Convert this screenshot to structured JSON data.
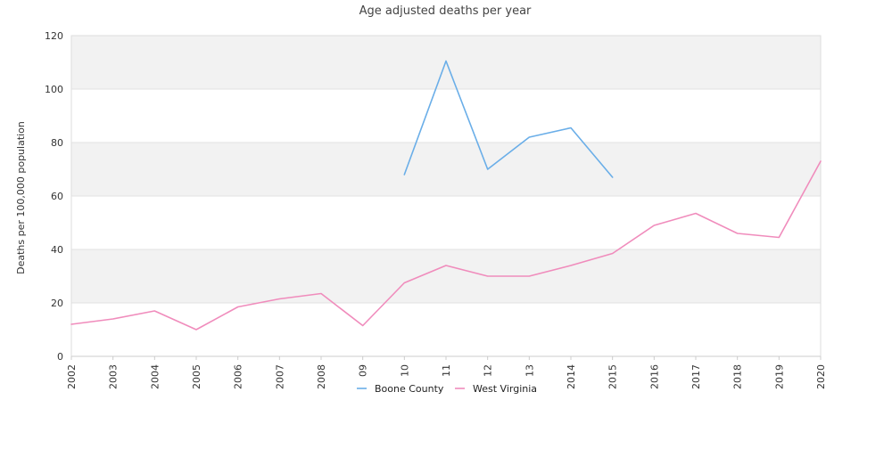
{
  "chart_data": {
    "type": "line",
    "title": "Age adjusted deaths per year",
    "xlabel": "",
    "ylabel": "Deaths per 100,000 population",
    "categories": [
      "2002",
      "2003",
      "2004",
      "2005",
      "2006",
      "2007",
      "2008",
      "09",
      "10",
      "11",
      "12",
      "13",
      "2014",
      "2015",
      "2016",
      "2017",
      "2018",
      "2019",
      "2020"
    ],
    "ylim": [
      0,
      120
    ],
    "yticks": [
      0,
      20,
      40,
      60,
      80,
      100,
      120
    ],
    "grid": "alternating horizontal bands",
    "legend_position": "bottom-center",
    "series": [
      {
        "name": "Boone County",
        "color": "#6aaee8",
        "values": [
          null,
          null,
          null,
          null,
          null,
          null,
          null,
          null,
          68,
          110.5,
          70,
          82,
          85.5,
          67,
          null,
          null,
          null,
          null,
          null
        ]
      },
      {
        "name": "West Virginia",
        "color": "#f08cbc",
        "values": [
          12,
          14,
          17,
          10,
          18.5,
          21.5,
          23.5,
          11.5,
          27.5,
          34,
          30,
          30,
          34,
          38.5,
          49,
          53.5,
          46,
          44.5,
          73
        ]
      }
    ]
  }
}
